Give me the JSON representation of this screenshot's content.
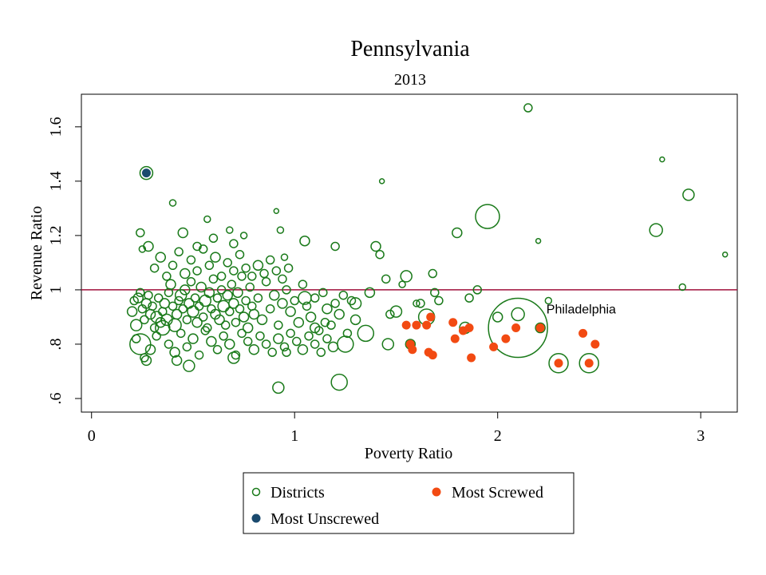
{
  "chart_data": {
    "type": "scatter",
    "title": "Pennsylvania",
    "subtitle": "2013",
    "xlabel": "Poverty Ratio",
    "ylabel": "Revenue Ratio",
    "xlim": [
      -0.05,
      3.18
    ],
    "ylim": [
      0.55,
      1.72
    ],
    "xticks": [
      {
        "value": 0,
        "label": "0"
      },
      {
        "value": 1,
        "label": "1"
      },
      {
        "value": 2,
        "label": "2"
      },
      {
        "value": 3,
        "label": "3"
      }
    ],
    "yticks": [
      {
        "value": 0.6,
        "label": ".6"
      },
      {
        "value": 0.8,
        "label": ".8"
      },
      {
        "value": 1.0,
        "label": "1"
      },
      {
        "value": 1.2,
        "label": "1.2"
      },
      {
        "value": 1.4,
        "label": "1.4"
      },
      {
        "value": 1.6,
        "label": "1.6"
      }
    ],
    "reference_line": {
      "y": 1.0,
      "color": "#a0103c"
    },
    "colors": {
      "districts": "#1a7a1a",
      "most_screwed": "#f24a12",
      "most_unscrewed": "#1a4a6e"
    },
    "annotations": [
      {
        "text": "Philadelphia",
        "x": 2.24,
        "y": 0.93
      }
    ],
    "series": [
      {
        "name": "Districts",
        "marker": "hollow-circle",
        "points": [
          [
            0.21,
            0.96,
            5
          ],
          [
            0.23,
            0.97,
            6
          ],
          [
            0.24,
            0.99,
            5
          ],
          [
            0.25,
            0.93,
            5
          ],
          [
            0.22,
            0.87,
            7
          ],
          [
            0.26,
            0.89,
            5
          ],
          [
            0.27,
            0.95,
            6
          ],
          [
            0.28,
            0.98,
            5
          ],
          [
            0.29,
            0.91,
            6
          ],
          [
            0.3,
            0.94,
            5
          ],
          [
            0.31,
            0.86,
            5
          ],
          [
            0.32,
            0.9,
            7
          ],
          [
            0.33,
            0.97,
            5
          ],
          [
            0.34,
            0.88,
            6
          ],
          [
            0.35,
            0.92,
            5
          ],
          [
            0.36,
            0.95,
            6
          ],
          [
            0.37,
            0.89,
            7
          ],
          [
            0.38,
            0.99,
            5
          ],
          [
            0.39,
            1.02,
            6
          ],
          [
            0.4,
            0.94,
            5
          ],
          [
            0.41,
            0.87,
            8
          ],
          [
            0.42,
            0.91,
            6
          ],
          [
            0.43,
            0.96,
            5
          ],
          [
            0.44,
            0.98,
            7
          ],
          [
            0.45,
            0.93,
            5
          ],
          [
            0.46,
            1.0,
            6
          ],
          [
            0.47,
            0.89,
            5
          ],
          [
            0.48,
            0.95,
            6
          ],
          [
            0.49,
            1.03,
            5
          ],
          [
            0.5,
            0.92,
            7
          ],
          [
            0.51,
            0.97,
            5
          ],
          [
            0.52,
            0.88,
            6
          ],
          [
            0.53,
            0.94,
            5
          ],
          [
            0.54,
            1.01,
            6
          ],
          [
            0.55,
            0.9,
            5
          ],
          [
            0.56,
            0.96,
            7
          ],
          [
            0.57,
            0.86,
            5
          ],
          [
            0.58,
            0.99,
            6
          ],
          [
            0.59,
            0.93,
            5
          ],
          [
            0.6,
            1.04,
            5
          ],
          [
            0.61,
            0.91,
            6
          ],
          [
            0.62,
            0.97,
            5
          ],
          [
            0.63,
            0.89,
            6
          ],
          [
            0.64,
            1.0,
            5
          ],
          [
            0.65,
            0.94,
            7
          ],
          [
            0.66,
            0.87,
            5
          ],
          [
            0.67,
            0.98,
            6
          ],
          [
            0.68,
            0.92,
            5
          ],
          [
            0.69,
            1.02,
            5
          ],
          [
            0.7,
            0.95,
            6
          ],
          [
            0.71,
            0.88,
            5
          ],
          [
            0.72,
            0.99,
            6
          ],
          [
            0.73,
            0.93,
            5
          ],
          [
            0.74,
            1.05,
            5
          ],
          [
            0.75,
            0.9,
            6
          ],
          [
            0.76,
            0.96,
            5
          ],
          [
            0.77,
            0.86,
            6
          ],
          [
            0.78,
            1.01,
            5
          ],
          [
            0.79,
            0.94,
            5
          ],
          [
            0.8,
            0.91,
            6
          ],
          [
            0.82,
            0.97,
            5
          ],
          [
            0.84,
            0.89,
            6
          ],
          [
            0.86,
            1.03,
            5
          ],
          [
            0.88,
            0.93,
            5
          ],
          [
            0.9,
            0.98,
            6
          ],
          [
            0.92,
            0.87,
            5
          ],
          [
            0.94,
            0.95,
            6
          ],
          [
            0.96,
            1.0,
            5
          ],
          [
            0.98,
            0.92,
            6
          ],
          [
            1.0,
            0.96,
            5
          ],
          [
            1.02,
            0.88,
            6
          ],
          [
            1.04,
            1.02,
            5
          ],
          [
            1.06,
            0.94,
            5
          ],
          [
            1.08,
            0.9,
            6
          ],
          [
            1.1,
            0.97,
            5
          ],
          [
            1.12,
            0.85,
            5
          ],
          [
            1.14,
            0.99,
            5
          ],
          [
            1.16,
            0.93,
            6
          ],
          [
            1.18,
            0.87,
            5
          ],
          [
            1.2,
            0.95,
            5
          ],
          [
            1.22,
            0.91,
            6
          ],
          [
            1.24,
            0.98,
            5
          ],
          [
            1.26,
            0.84,
            5
          ],
          [
            1.28,
            0.96,
            5
          ],
          [
            1.3,
            0.89,
            6
          ],
          [
            0.22,
            0.82,
            5
          ],
          [
            0.24,
            0.8,
            13
          ],
          [
            0.26,
            0.75,
            5
          ],
          [
            0.29,
            0.78,
            6
          ],
          [
            0.32,
            0.83,
            5
          ],
          [
            0.35,
            0.86,
            9
          ],
          [
            0.38,
            0.8,
            5
          ],
          [
            0.41,
            0.77,
            6
          ],
          [
            0.44,
            0.84,
            5
          ],
          [
            0.47,
            0.79,
            5
          ],
          [
            0.5,
            0.82,
            6
          ],
          [
            0.53,
            0.76,
            5
          ],
          [
            0.56,
            0.85,
            5
          ],
          [
            0.59,
            0.81,
            6
          ],
          [
            0.62,
            0.78,
            5
          ],
          [
            0.65,
            0.83,
            5
          ],
          [
            0.68,
            0.8,
            6
          ],
          [
            0.71,
            0.76,
            5
          ],
          [
            0.74,
            0.84,
            5
          ],
          [
            0.77,
            0.81,
            5
          ],
          [
            0.8,
            0.78,
            6
          ],
          [
            0.83,
            0.83,
            5
          ],
          [
            0.86,
            0.8,
            5
          ],
          [
            0.89,
            0.77,
            5
          ],
          [
            0.92,
            0.82,
            6
          ],
          [
            0.95,
            0.79,
            5
          ],
          [
            0.98,
            0.84,
            5
          ],
          [
            1.01,
            0.81,
            5
          ],
          [
            1.04,
            0.78,
            6
          ],
          [
            1.07,
            0.83,
            5
          ],
          [
            1.1,
            0.8,
            5
          ],
          [
            1.13,
            0.77,
            5
          ],
          [
            1.16,
            0.82,
            5
          ],
          [
            1.19,
            0.79,
            6
          ],
          [
            0.24,
            1.21,
            5
          ],
          [
            0.28,
            1.16,
            6
          ],
          [
            0.31,
            1.08,
            5
          ],
          [
            0.34,
            1.12,
            6
          ],
          [
            0.37,
            1.05,
            5
          ],
          [
            0.4,
            1.09,
            5
          ],
          [
            0.43,
            1.14,
            5
          ],
          [
            0.46,
            1.06,
            6
          ],
          [
            0.49,
            1.11,
            5
          ],
          [
            0.52,
            1.07,
            5
          ],
          [
            0.55,
            1.15,
            5
          ],
          [
            0.58,
            1.09,
            5
          ],
          [
            0.61,
            1.12,
            6
          ],
          [
            0.64,
            1.05,
            5
          ],
          [
            0.67,
            1.1,
            5
          ],
          [
            0.7,
            1.07,
            5
          ],
          [
            0.73,
            1.13,
            5
          ],
          [
            0.76,
            1.08,
            5
          ],
          [
            0.79,
            1.05,
            5
          ],
          [
            0.82,
            1.09,
            6
          ],
          [
            0.85,
            1.06,
            5
          ],
          [
            0.88,
            1.11,
            5
          ],
          [
            0.91,
            1.07,
            5
          ],
          [
            0.94,
            1.04,
            5
          ],
          [
            0.97,
            1.08,
            5
          ],
          [
            0.25,
            1.15,
            4
          ],
          [
            0.4,
            1.32,
            4
          ],
          [
            0.45,
            1.21,
            6
          ],
          [
            0.52,
            1.16,
            5
          ],
          [
            0.57,
            1.26,
            4
          ],
          [
            0.6,
            1.19,
            5
          ],
          [
            0.68,
            1.22,
            4
          ],
          [
            0.7,
            1.17,
            5
          ],
          [
            0.75,
            1.2,
            4
          ],
          [
            0.91,
            1.29,
            3
          ],
          [
            0.93,
            1.22,
            4
          ],
          [
            0.95,
            1.12,
            4
          ],
          [
            0.2,
            0.92,
            6
          ],
          [
            0.27,
            0.74,
            6
          ],
          [
            0.42,
            0.74,
            6
          ],
          [
            0.48,
            0.72,
            7
          ],
          [
            0.7,
            0.75,
            7
          ],
          [
            0.92,
            0.64,
            7
          ],
          [
            0.96,
            0.77,
            5
          ],
          [
            1.05,
            1.18,
            6
          ],
          [
            1.05,
            0.97,
            8
          ],
          [
            1.1,
            0.86,
            6
          ],
          [
            1.15,
            0.88,
            5
          ],
          [
            1.2,
            1.16,
            5
          ],
          [
            1.22,
            0.66,
            10
          ],
          [
            1.25,
            0.8,
            10
          ],
          [
            1.3,
            0.95,
            7
          ],
          [
            1.35,
            0.84,
            10
          ],
          [
            1.37,
            0.99,
            6
          ],
          [
            1.4,
            1.16,
            6
          ],
          [
            1.42,
            1.13,
            5
          ],
          [
            1.43,
            1.4,
            3
          ],
          [
            1.45,
            1.04,
            5
          ],
          [
            1.46,
            0.8,
            7
          ],
          [
            1.47,
            0.91,
            5
          ],
          [
            1.5,
            0.92,
            7
          ],
          [
            1.53,
            1.02,
            4
          ],
          [
            1.55,
            1.05,
            7
          ],
          [
            1.6,
            0.95,
            4
          ],
          [
            1.62,
            0.95,
            5
          ],
          [
            1.65,
            0.9,
            10
          ],
          [
            1.68,
            1.06,
            5
          ],
          [
            1.69,
            0.99,
            5
          ],
          [
            1.71,
            0.96,
            5
          ],
          [
            1.8,
            1.21,
            6
          ],
          [
            1.86,
            0.97,
            5
          ],
          [
            1.9,
            1.0,
            5
          ],
          [
            1.95,
            1.27,
            15
          ],
          [
            2.0,
            0.9,
            6
          ],
          [
            2.1,
            0.91,
            8
          ],
          [
            2.1,
            0.86,
            37
          ],
          [
            2.15,
            1.67,
            5
          ],
          [
            2.2,
            1.18,
            3
          ],
          [
            2.21,
            0.86,
            6
          ],
          [
            2.25,
            0.96,
            4
          ],
          [
            2.3,
            0.73,
            12
          ],
          [
            2.45,
            0.73,
            12
          ],
          [
            2.78,
            1.22,
            8
          ],
          [
            2.81,
            1.48,
            3
          ],
          [
            2.91,
            1.01,
            4
          ],
          [
            2.94,
            1.35,
            7
          ],
          [
            3.12,
            1.13,
            3
          ],
          [
            1.84,
            0.86,
            7
          ],
          [
            1.57,
            0.8,
            6
          ]
        ]
      },
      {
        "name": "Most Screwed",
        "marker": "filled-circle",
        "points": [
          [
            1.55,
            0.87
          ],
          [
            1.6,
            0.87
          ],
          [
            1.65,
            0.87
          ],
          [
            1.67,
            0.9
          ],
          [
            1.57,
            0.8
          ],
          [
            1.58,
            0.78
          ],
          [
            1.66,
            0.77
          ],
          [
            1.68,
            0.76
          ],
          [
            1.78,
            0.88
          ],
          [
            1.79,
            0.82
          ],
          [
            1.83,
            0.85
          ],
          [
            1.86,
            0.86
          ],
          [
            1.87,
            0.75
          ],
          [
            1.98,
            0.79
          ],
          [
            2.04,
            0.82
          ],
          [
            2.09,
            0.86
          ],
          [
            2.21,
            0.86
          ],
          [
            2.3,
            0.73
          ],
          [
            2.42,
            0.84
          ],
          [
            2.45,
            0.73
          ],
          [
            2.48,
            0.8
          ]
        ]
      },
      {
        "name": "Most Unscrewed",
        "marker": "filled-circle",
        "points": [
          [
            0.27,
            1.43
          ]
        ],
        "ring_radius": 8
      }
    ],
    "legend": {
      "placement": "bottom",
      "entries": [
        {
          "label": "Districts",
          "series": "Districts"
        },
        {
          "label": "Most Screwed",
          "series": "Most Screwed"
        },
        {
          "label": "Most Unscrewed",
          "series": "Most Unscrewed"
        }
      ]
    }
  }
}
